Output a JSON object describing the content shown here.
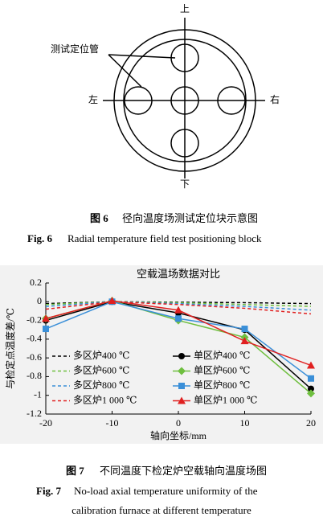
{
  "diagram": {
    "labels": {
      "top": "上",
      "bottom": "下",
      "left": "左",
      "right": "右",
      "pointer": "测试定位管"
    }
  },
  "fig6": {
    "cn_label": "图 6",
    "cn_text": "径向温度场测试定位块示意图",
    "en_label": "Fig. 6",
    "en_text": "Radial temperature field test positioning block"
  },
  "chart_data": {
    "type": "line",
    "title": "空载温场数据对比",
    "x_label": "轴向坐标/mm",
    "y_label": "与检定点温度差/℃",
    "x": [
      -20,
      -10,
      0,
      10,
      20
    ],
    "xlim": [
      -20,
      20
    ],
    "xticks": [
      -20,
      -10,
      0,
      10,
      20
    ],
    "ylim": [
      -1.2,
      0.2
    ],
    "yticks": [
      0.2,
      0,
      -0.2,
      -0.4,
      -0.6,
      -0.8,
      -1.0,
      -1.2
    ],
    "legend": "lower left",
    "series": [
      {
        "name": "多区炉400 ℃",
        "color": "#000000",
        "dash": true,
        "values": [
          -0.02,
          0,
          -0.005,
          -0.01,
          -0.02
        ]
      },
      {
        "name": "多区炉600 ℃",
        "color": "#6fbf3f",
        "dash": true,
        "values": [
          -0.03,
          0,
          -0.01,
          -0.03,
          -0.05
        ]
      },
      {
        "name": "多区炉800 ℃",
        "color": "#3a8fd8",
        "dash": true,
        "values": [
          -0.05,
          0,
          -0.02,
          -0.05,
          -0.09
        ]
      },
      {
        "name": "多区炉1 000 ℃",
        "color": "#e02020",
        "dash": true,
        "values": [
          -0.08,
          0,
          -0.03,
          -0.07,
          -0.13
        ]
      },
      {
        "name": "单区炉400 ℃",
        "color": "#000000",
        "marker": "circle",
        "values": [
          -0.2,
          0,
          -0.12,
          -0.3,
          -0.93
        ]
      },
      {
        "name": "单区炉600 ℃",
        "color": "#6fbf3f",
        "marker": "diamond",
        "values": [
          -0.18,
          0.01,
          -0.2,
          -0.38,
          -0.98
        ]
      },
      {
        "name": "单区炉800 ℃",
        "color": "#3a8fd8",
        "marker": "square",
        "values": [
          -0.29,
          0,
          -0.18,
          -0.29,
          -0.82
        ]
      },
      {
        "name": "单区炉1 000 ℃",
        "color": "#e02020",
        "marker": "triangle",
        "values": [
          -0.18,
          0.01,
          -0.09,
          -0.42,
          -0.68
        ]
      }
    ]
  },
  "fig7": {
    "cn_label": "图 7",
    "cn_text": "不同温度下检定炉空载轴向温度场图",
    "en_label": "Fig. 7",
    "en_text_1": "No-load axial temperature uniformity of the",
    "en_text_2": "calibration furnace at different temperature"
  }
}
